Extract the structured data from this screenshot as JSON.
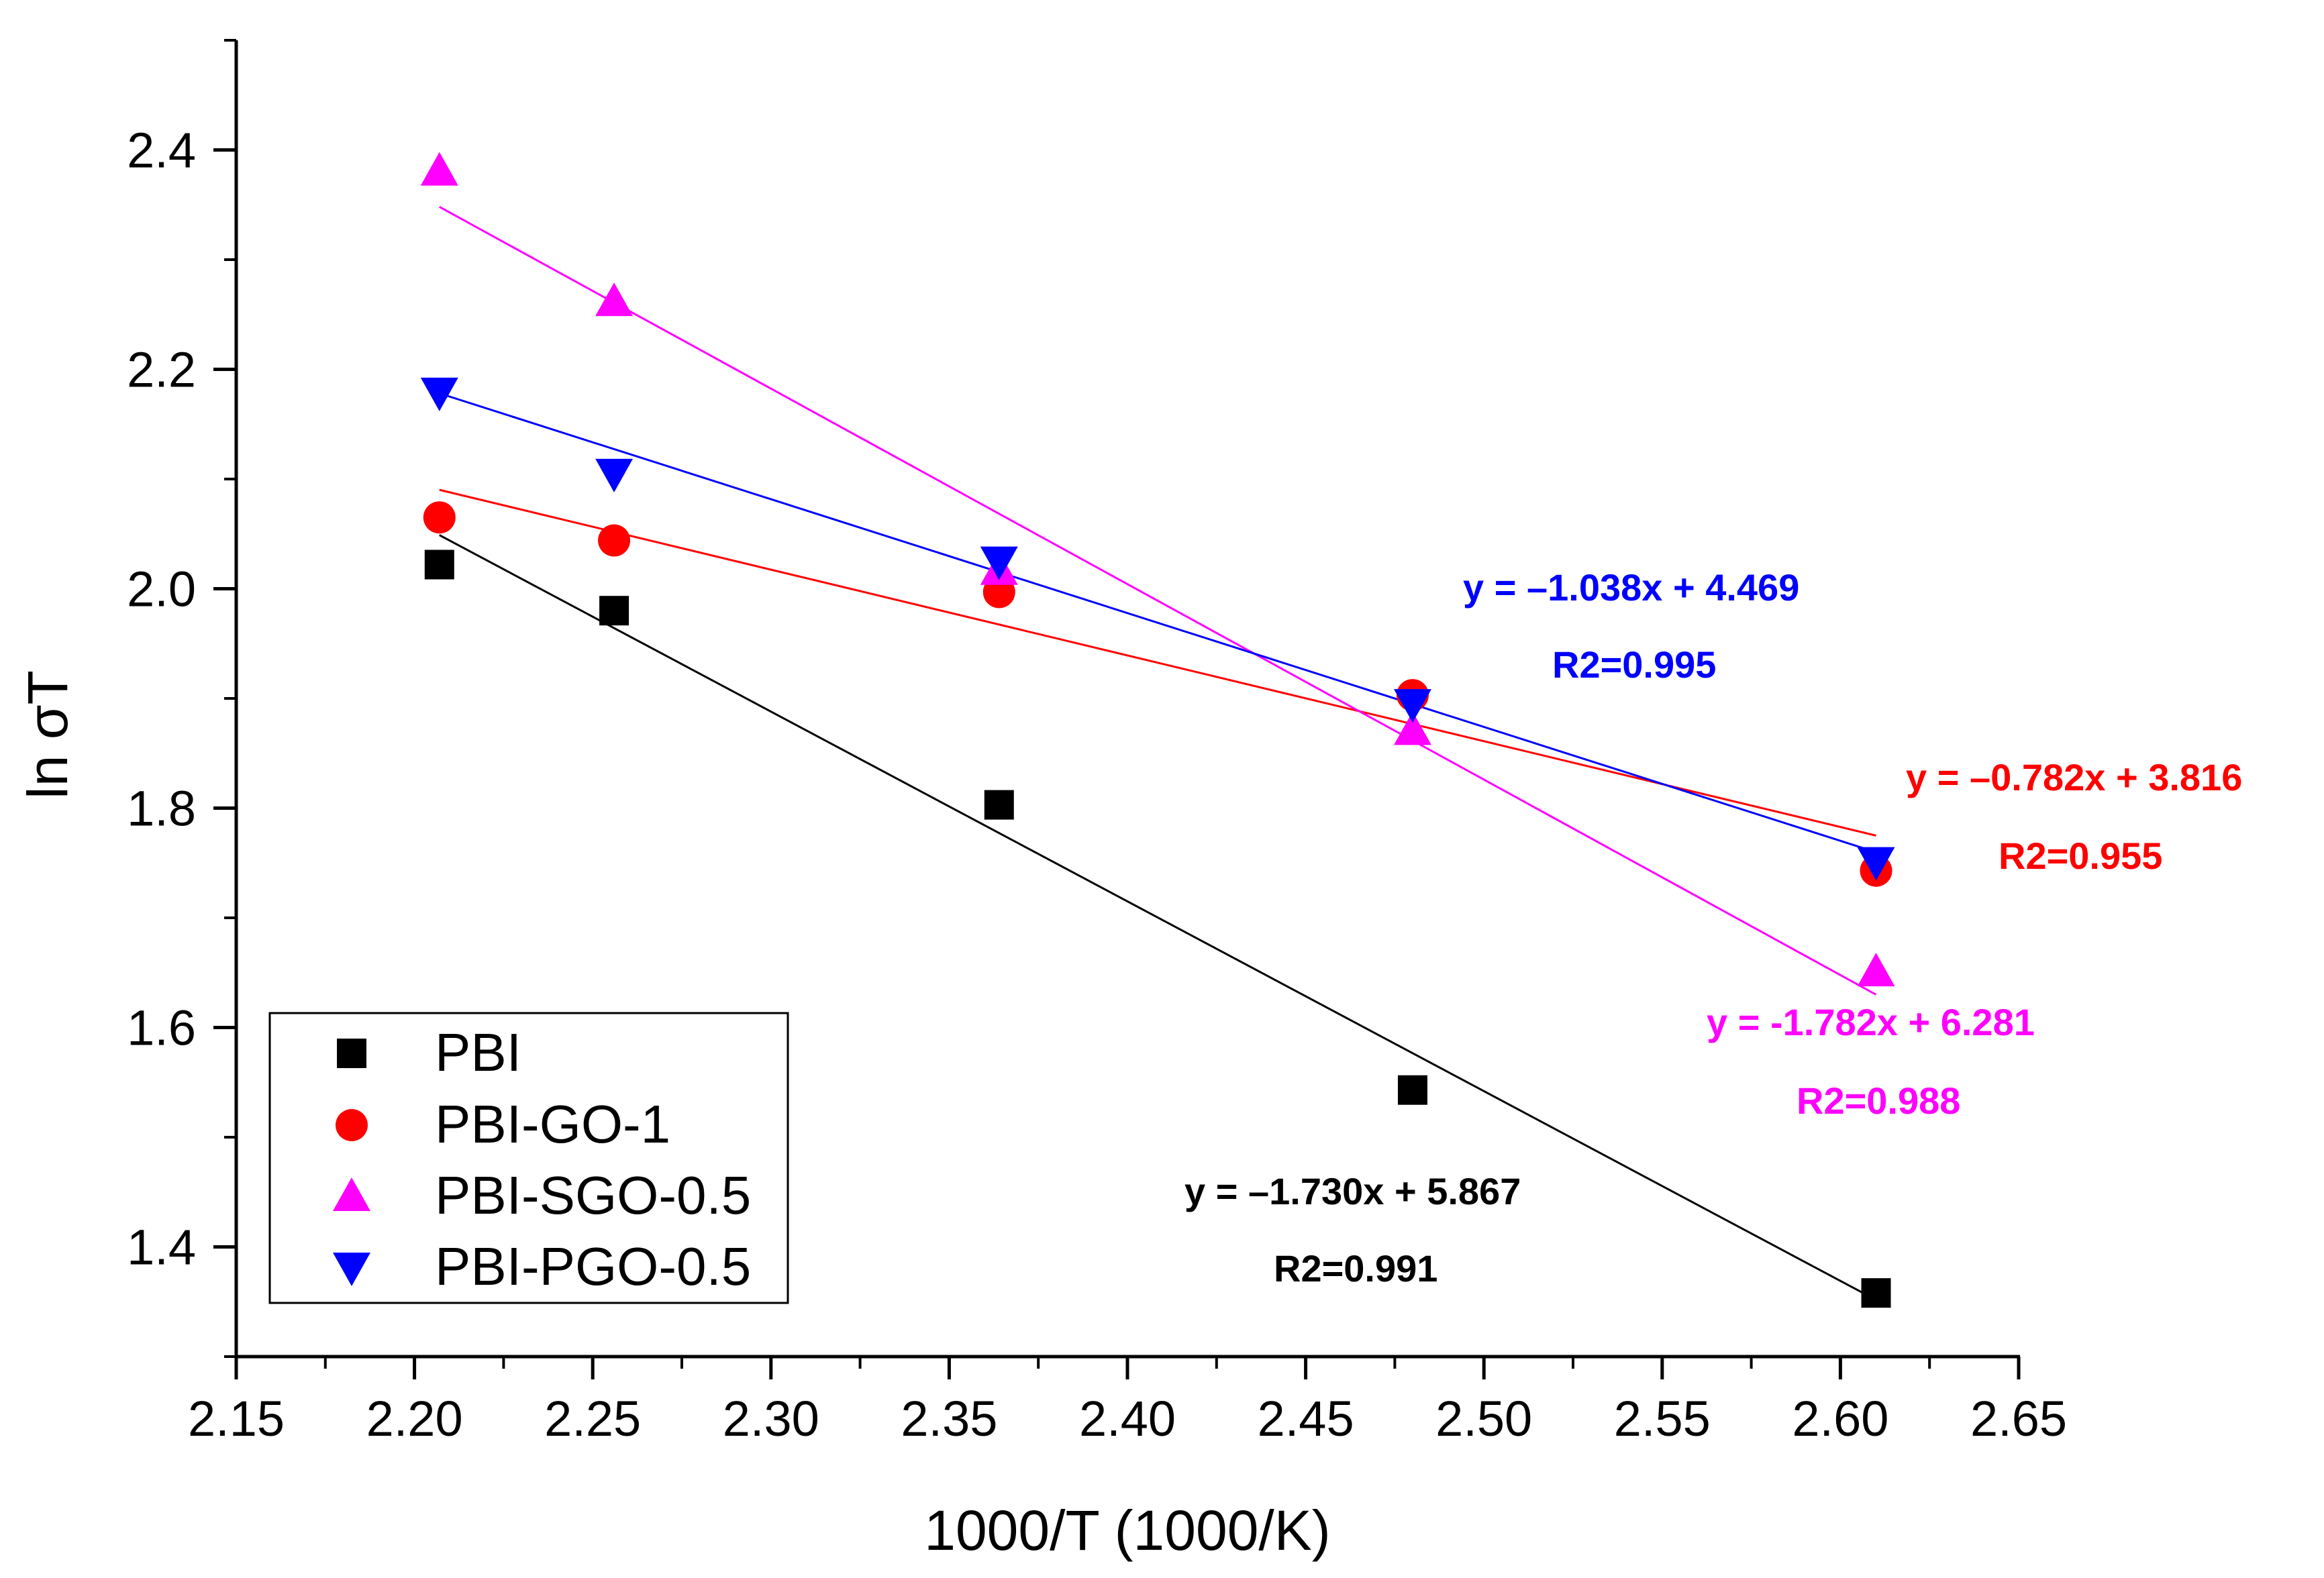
{
  "chart_data": {
    "type": "scatter",
    "title": "",
    "xlabel": "1000/T (1000/K)",
    "ylabel": "ln σT",
    "xlim": [
      2.15,
      2.65
    ],
    "ylim": [
      1.3,
      2.5
    ],
    "x_ticks": [
      "2.15",
      "2.20",
      "2.25",
      "2.30",
      "2.35",
      "2.40",
      "2.45",
      "2.50",
      "2.55",
      "2.60",
      "2.65"
    ],
    "y_ticks": [
      "1.4",
      "1.6",
      "1.8",
      "2.0",
      "2.2",
      "2.4"
    ],
    "legend_position": "bottom-left",
    "series": [
      {
        "name": "PBI",
        "marker": "square",
        "color": "#000000",
        "x": [
          2.207,
          2.256,
          2.364,
          2.48,
          2.61
        ],
        "y": [
          2.022,
          1.98,
          1.803,
          1.543,
          1.358
        ],
        "fit": {
          "slope": -1.73,
          "intercept": 5.867
        },
        "equation": "y = –1.730x + 5.867",
        "r2": "R2=0.991"
      },
      {
        "name": "PBI-GO-1",
        "marker": "circle",
        "color": "#ff0000",
        "x": [
          2.207,
          2.256,
          2.364,
          2.48,
          2.61
        ],
        "y": [
          2.065,
          2.044,
          1.997,
          1.903,
          1.743
        ],
        "fit": {
          "slope": -0.782,
          "intercept": 3.816
        },
        "equation": "y = –0.782x + 3.816",
        "r2": "R2=0.955"
      },
      {
        "name": "PBI-SGO-0.5",
        "marker": "triangle-up",
        "color": "#ff00ff",
        "x": [
          2.207,
          2.256,
          2.364,
          2.48,
          2.61
        ],
        "y": [
          2.381,
          2.262,
          2.017,
          1.871,
          1.651
        ],
        "fit": {
          "slope": -1.782,
          "intercept": 6.281
        },
        "equation": "y = -1.782x + 6.281",
        "r2": "R2=0.988"
      },
      {
        "name": "PBI-PGO-0.5",
        "marker": "triangle-down",
        "color": "#0000ff",
        "x": [
          2.207,
          2.256,
          2.364,
          2.48,
          2.61
        ],
        "y": [
          2.179,
          2.105,
          2.025,
          1.895,
          1.751
        ],
        "fit": {
          "slope": -1.038,
          "intercept": 4.469
        },
        "equation": "y = –1.038x + 4.469",
        "r2": "R2=0.995"
      }
    ]
  }
}
